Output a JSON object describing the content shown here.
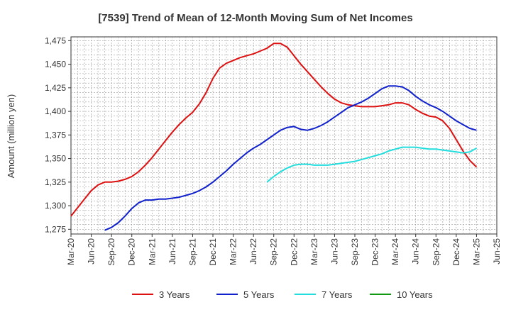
{
  "chart_data": {
    "type": "line",
    "title": "[7539]  Trend of Mean of 12-Month Moving Sum of Net Incomes",
    "ylabel": "Amount (million yen)",
    "xlabel": "",
    "ylim": [
      1270,
      1479
    ],
    "yticks": [
      "1,275",
      "1,300",
      "1,325",
      "1,350",
      "1,375",
      "1,400",
      "1,425",
      "1,450",
      "1,475"
    ],
    "ytick_values": [
      1275,
      1300,
      1325,
      1350,
      1375,
      1400,
      1425,
      1450,
      1475
    ],
    "xticks": [
      "Mar-20",
      "Jun-20",
      "Sep-20",
      "Dec-20",
      "Mar-21",
      "Jun-21",
      "Sep-21",
      "Dec-21",
      "Mar-22",
      "Jun-22",
      "Sep-22",
      "Dec-22",
      "Mar-23",
      "Jun-23",
      "Sep-23",
      "Dec-23",
      "Mar-24",
      "Jun-24",
      "Sep-24",
      "Dec-24",
      "Mar-25",
      "Jun-25"
    ],
    "grid": true,
    "legend_position": "bottom",
    "series": [
      {
        "name": "3 Years",
        "color": "#dd1111",
        "x": [
          "Mar-20",
          "Apr-20",
          "May-20",
          "Jun-20",
          "Jul-20",
          "Aug-20",
          "Sep-20",
          "Oct-20",
          "Nov-20",
          "Dec-20",
          "Jan-21",
          "Feb-21",
          "Mar-21",
          "Apr-21",
          "May-21",
          "Jun-21",
          "Jul-21",
          "Aug-21",
          "Sep-21",
          "Oct-21",
          "Nov-21",
          "Dec-21",
          "Jan-22",
          "Feb-22",
          "Mar-22",
          "Apr-22",
          "May-22",
          "Jun-22",
          "Jul-22",
          "Aug-22",
          "Sep-22",
          "Oct-22",
          "Nov-22",
          "Dec-22",
          "Jan-23",
          "Feb-23",
          "Mar-23",
          "Apr-23",
          "May-23",
          "Jun-23",
          "Jul-23",
          "Aug-23",
          "Sep-23",
          "Oct-23",
          "Nov-23",
          "Dec-23",
          "Jan-24",
          "Feb-24",
          "Mar-24",
          "Apr-24",
          "May-24",
          "Jun-24",
          "Jul-24",
          "Aug-24",
          "Sep-24",
          "Oct-24",
          "Nov-24",
          "Dec-24",
          "Jan-25",
          "Feb-25",
          "Mar-25"
        ],
        "values": [
          1289,
          1298,
          1307,
          1316,
          1322,
          1325,
          1325,
          1326,
          1328,
          1331,
          1336,
          1343,
          1351,
          1360,
          1369,
          1378,
          1386,
          1393,
          1399,
          1408,
          1420,
          1435,
          1446,
          1451,
          1454,
          1457,
          1459,
          1461,
          1464,
          1467,
          1472,
          1472,
          1468,
          1459,
          1450,
          1442,
          1434,
          1426,
          1419,
          1413,
          1409,
          1407,
          1406,
          1405,
          1405,
          1405,
          1406,
          1407,
          1409,
          1409,
          1407,
          1402,
          1398,
          1395,
          1394,
          1390,
          1382,
          1370,
          1358,
          1348,
          1341
        ]
      },
      {
        "name": "5 Years",
        "color": "#1122cc",
        "x": [
          "Aug-20",
          "Sep-20",
          "Oct-20",
          "Nov-20",
          "Dec-20",
          "Jan-21",
          "Feb-21",
          "Mar-21",
          "Apr-21",
          "May-21",
          "Jun-21",
          "Jul-21",
          "Aug-21",
          "Sep-21",
          "Oct-21",
          "Nov-21",
          "Dec-21",
          "Jan-22",
          "Feb-22",
          "Mar-22",
          "Apr-22",
          "May-22",
          "Jun-22",
          "Jul-22",
          "Aug-22",
          "Sep-22",
          "Oct-22",
          "Nov-22",
          "Dec-22",
          "Jan-23",
          "Feb-23",
          "Mar-23",
          "Apr-23",
          "May-23",
          "Jun-23",
          "Jul-23",
          "Aug-23",
          "Sep-23",
          "Oct-23",
          "Nov-23",
          "Dec-23",
          "Jan-24",
          "Feb-24",
          "Mar-24",
          "Apr-24",
          "May-24",
          "Jun-24",
          "Jul-24",
          "Aug-24",
          "Sep-24",
          "Oct-24",
          "Nov-24",
          "Dec-24",
          "Jan-25",
          "Feb-25",
          "Mar-25"
        ],
        "values": [
          1274,
          1277,
          1282,
          1289,
          1297,
          1303,
          1306,
          1306,
          1307,
          1307,
          1308,
          1309,
          1311,
          1313,
          1316,
          1320,
          1325,
          1331,
          1337,
          1344,
          1350,
          1356,
          1361,
          1365,
          1370,
          1375,
          1380,
          1383,
          1384,
          1381,
          1380,
          1382,
          1385,
          1389,
          1394,
          1399,
          1404,
          1407,
          1410,
          1414,
          1419,
          1424,
          1427,
          1427,
          1426,
          1422,
          1416,
          1411,
          1407,
          1404,
          1400,
          1395,
          1390,
          1386,
          1382,
          1380
        ]
      },
      {
        "name": "7 Years",
        "color": "#22dddd",
        "x": [
          "Aug-22",
          "Sep-22",
          "Oct-22",
          "Nov-22",
          "Dec-22",
          "Jan-23",
          "Feb-23",
          "Mar-23",
          "Apr-23",
          "May-23",
          "Jun-23",
          "Jul-23",
          "Aug-23",
          "Sep-23",
          "Oct-23",
          "Nov-23",
          "Dec-23",
          "Jan-24",
          "Feb-24",
          "Mar-24",
          "Apr-24",
          "May-24",
          "Jun-24",
          "Jul-24",
          "Aug-24",
          "Sep-24",
          "Oct-24",
          "Nov-24",
          "Dec-24",
          "Jan-25",
          "Feb-25",
          "Mar-25"
        ],
        "values": [
          1325,
          1331,
          1336,
          1340,
          1343,
          1344,
          1344,
          1343,
          1343,
          1343,
          1344,
          1345,
          1346,
          1347,
          1349,
          1351,
          1353,
          1355,
          1358,
          1360,
          1362,
          1362,
          1362,
          1361,
          1360,
          1360,
          1359,
          1358,
          1357,
          1356,
          1357,
          1361
        ]
      },
      {
        "name": "10 Years",
        "color": "#119911",
        "x": [],
        "values": []
      }
    ]
  }
}
